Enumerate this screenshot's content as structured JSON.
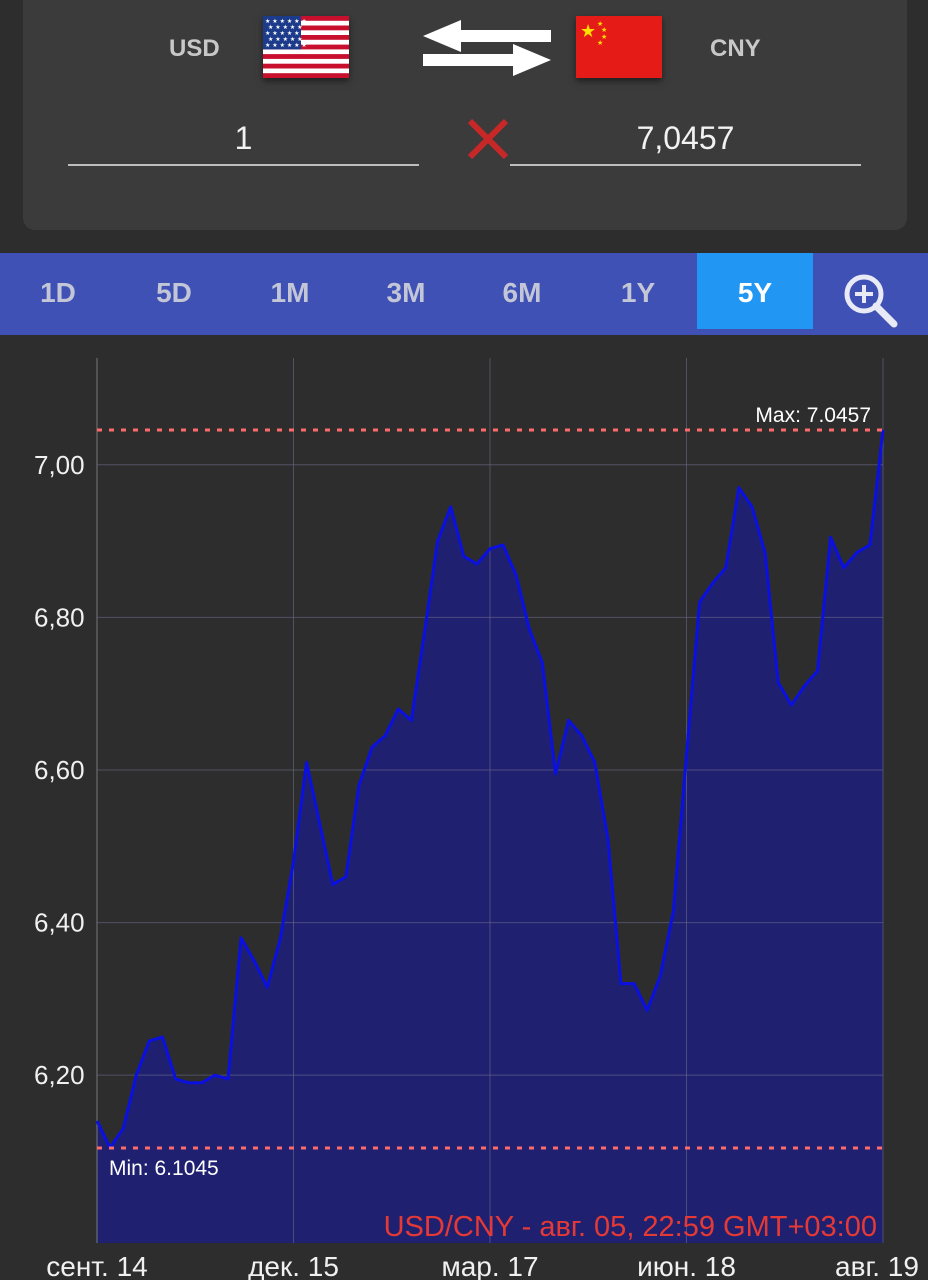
{
  "converter": {
    "from_code": "USD",
    "to_code": "CNY",
    "from_amount": "1",
    "to_amount": "7,0457",
    "icons": {
      "from_flag": "us-flag-icon",
      "to_flag": "china-flag-icon",
      "swap": "swap-arrows-icon",
      "clear": "clear-x-icon"
    },
    "colors": {
      "clear_x": "#c62828"
    }
  },
  "tabs": {
    "items": [
      "1D",
      "5D",
      "1M",
      "3M",
      "6M",
      "1Y",
      "5Y"
    ],
    "active": "5Y",
    "zoom_icon": "zoom-in-icon",
    "colors": {
      "bar": "#3f51b5",
      "active": "#2196f3"
    }
  },
  "chart_data": {
    "type": "area",
    "series_name": "USD/CNY",
    "caption": "USD/CNY - авг. 05, 22:59 GMT+03:00",
    "max_label": "Max: 7.0457",
    "min_label": "Min: 6.1045",
    "max": 7.0457,
    "min": 6.1045,
    "ylim": [
      5.98,
      7.14
    ],
    "yticks": [
      6.2,
      6.4,
      6.6,
      6.8,
      7.0
    ],
    "ytick_labels": [
      "6,20",
      "6,40",
      "6,60",
      "6,80",
      "7,00"
    ],
    "xticks": [
      0,
      15,
      30,
      45,
      60
    ],
    "xtick_labels": [
      "сент. 14",
      "дек. 15",
      "мар. 17",
      "июн. 18",
      "авг. 19"
    ],
    "values": [
      6.14,
      6.105,
      6.13,
      6.2,
      6.245,
      6.25,
      6.195,
      6.19,
      6.19,
      6.2,
      6.195,
      6.38,
      6.35,
      6.315,
      6.38,
      6.48,
      6.61,
      6.53,
      6.45,
      6.46,
      6.58,
      6.63,
      6.645,
      6.68,
      6.665,
      6.78,
      6.9,
      6.945,
      6.88,
      6.87,
      6.89,
      6.895,
      6.855,
      6.785,
      6.74,
      6.595,
      6.665,
      6.645,
      6.61,
      6.51,
      6.32,
      6.32,
      6.285,
      6.33,
      6.415,
      6.62,
      6.82,
      6.845,
      6.865,
      6.97,
      6.945,
      6.885,
      6.715,
      6.685,
      6.71,
      6.73,
      6.905,
      6.865,
      6.885,
      6.895,
      7.0457
    ],
    "grid": true,
    "colors": {
      "line": "#0a10e0",
      "fill": "#1f2170",
      "limit_lines": "#ff6b6b",
      "caption": "#e53935"
    }
  }
}
